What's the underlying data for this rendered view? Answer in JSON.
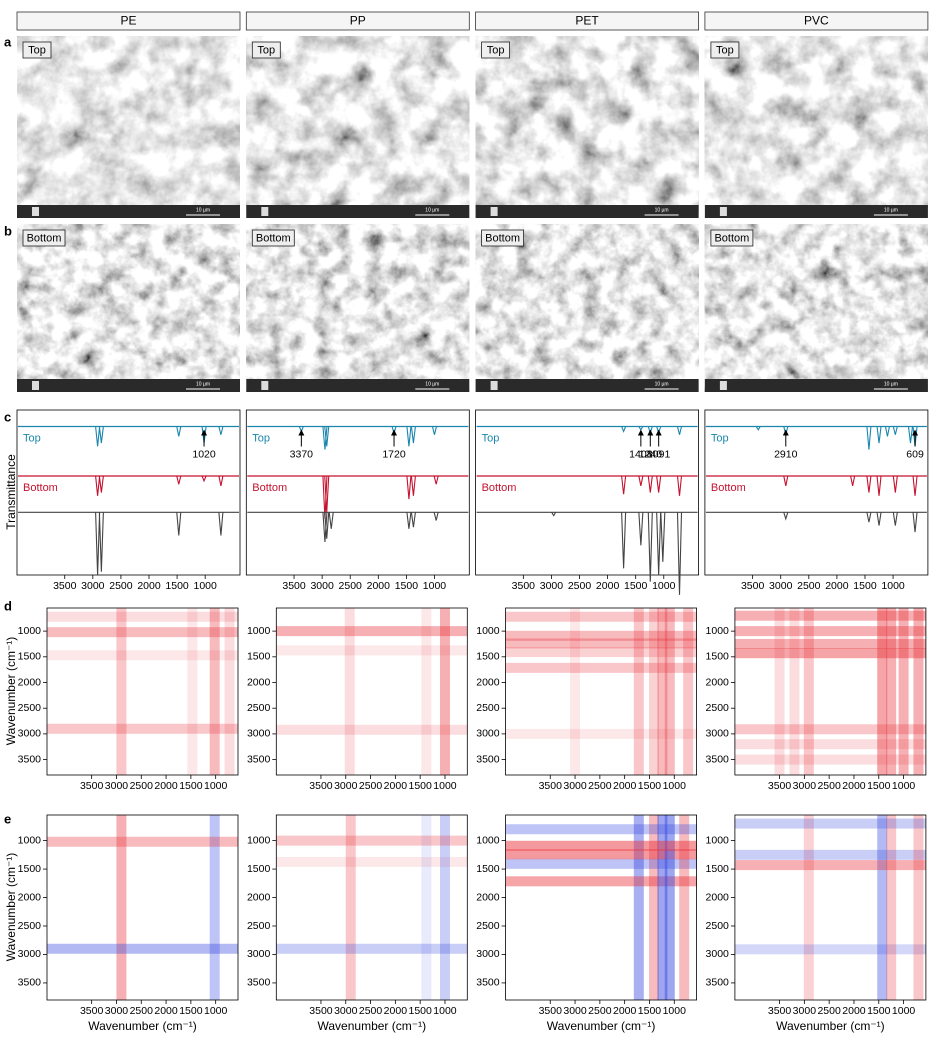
{
  "column_headers": [
    "PE",
    "PP",
    "PET",
    "PVC"
  ],
  "panel_letters": [
    "a",
    "b",
    "c",
    "d",
    "e"
  ],
  "sem": {
    "labels": [
      "Top",
      "Bottom"
    ],
    "scale_bar": "10 µm"
  },
  "spectra": {
    "type": "line",
    "ylabel": "Transmittance",
    "xlim": [
      4350,
      380
    ],
    "xticks": [
      3500,
      3000,
      2500,
      2000,
      1500,
      1000
    ],
    "panels": [
      {
        "annotations": [
          1020
        ],
        "series": [
          {
            "name": "Top",
            "color": "#1b86ad",
            "x": [
              2915,
              2848,
              1470,
              1020,
              720
            ],
            "values": [
              0.12,
              0.1,
              0.06,
              0.1,
              0.05
            ]
          },
          {
            "name": "Bottom",
            "color": "#c4122f",
            "x": [
              2915,
              2848,
              1470,
              1020,
              720
            ],
            "values": [
              0.12,
              0.1,
              0.05,
              0.03,
              0.06
            ]
          },
          {
            "color": "#444444",
            "x": [
              2915,
              2848,
              1470,
              720
            ],
            "values": [
              0.38,
              0.36,
              0.14,
              0.14
            ]
          }
        ]
      },
      {
        "annotations": [
          3370,
          1720
        ],
        "series": [
          {
            "name": "Top",
            "color": "#1b86ad",
            "x": [
              3370,
              2950,
              2918,
              1720,
              1455,
              1375,
              1000
            ],
            "values": [
              0.03,
              0.14,
              0.12,
              0.04,
              0.12,
              0.1,
              0.05
            ]
          },
          {
            "name": "Bottom",
            "color": "#c4122f",
            "x": [
              2950,
              2918,
              1455,
              1375,
              970
            ],
            "values": [
              0.26,
              0.22,
              0.14,
              0.12,
              0.05
            ]
          },
          {
            "color": "#444444",
            "x": [
              2950,
              2918,
              2838,
              1455,
              1375,
              970
            ],
            "values": [
              0.18,
              0.16,
              0.1,
              0.1,
              0.09,
              0.05
            ]
          }
        ]
      },
      {
        "annotations": [
          1408,
          1240,
          1091
        ],
        "series": [
          {
            "name": "Top",
            "color": "#1b86ad",
            "x": [
              1715,
              1408,
              1240,
              1091,
              720
            ],
            "values": [
              0.03,
              0.02,
              0.04,
              0.04,
              0.05
            ]
          },
          {
            "name": "Bottom",
            "color": "#c4122f",
            "x": [
              1715,
              1408,
              1240,
              1091,
              720
            ],
            "values": [
              0.11,
              0.06,
              0.1,
              0.1,
              0.12
            ]
          },
          {
            "color": "#444444",
            "x": [
              2960,
              1715,
              1408,
              1240,
              1091,
              1017,
              720
            ],
            "values": [
              0.02,
              0.34,
              0.2,
              0.42,
              0.38,
              0.3,
              0.5
            ]
          }
        ]
      },
      {
        "annotations": [
          2910,
          609
        ],
        "series": [
          {
            "name": "Top",
            "color": "#1b86ad",
            "x": [
              3400,
              2910,
              1430,
              1250,
              1100,
              960,
              690,
              609
            ],
            "values": [
              0.02,
              0.05,
              0.14,
              0.1,
              0.06,
              0.05,
              0.1,
              0.12
            ]
          },
          {
            "name": "Bottom",
            "color": "#c4122f",
            "x": [
              2910,
              1720,
              1430,
              1250,
              960,
              609
            ],
            "values": [
              0.06,
              0.06,
              0.1,
              0.12,
              0.1,
              0.12
            ]
          },
          {
            "color": "#444444",
            "x": [
              2910,
              1430,
              1250,
              960,
              609
            ],
            "values": [
              0.04,
              0.06,
              0.08,
              0.08,
              0.12
            ]
          }
        ]
      }
    ]
  },
  "maps": {
    "type": "heatmap",
    "xlabel": "Wavenumber (cm⁻¹)",
    "ylabel": "Wavenumber (cm⁻¹)",
    "xlim": [
      4400,
      550
    ],
    "ylim": [
      550,
      3800
    ],
    "xticks": [
      3500,
      3000,
      2500,
      2000,
      1500,
      1000
    ],
    "yticks": [
      1000,
      1500,
      2000,
      2500,
      3000,
      3500
    ],
    "positive_color": "#e8323a",
    "negative_color": "#3a4be0",
    "rows": [
      {
        "antisymmetric": false,
        "panels": [
          {
            "x": [
              2900,
              1020,
              1470,
              720
            ],
            "values": [
              0.5,
              0.6,
              0.2,
              0.3
            ]
          },
          {
            "x": [
              2920,
              1000,
              1375
            ],
            "values": [
              0.3,
              0.7,
              0.2
            ]
          },
          {
            "x": [
              3000,
              1715,
              1408,
              1240,
              1091,
              720
            ],
            "values": [
              0.2,
              0.5,
              0.4,
              0.6,
              0.6,
              0.5
            ]
          },
          {
            "x": [
              3500,
              3200,
              2910,
              1430,
              1250,
              1000,
              700
            ],
            "values": [
              0.3,
              0.3,
              0.5,
              0.8,
              0.7,
              0.7,
              0.7
            ]
          }
        ]
      },
      {
        "antisymmetric": true,
        "panels": [
          {
            "x": [
              2900,
              1020
            ],
            "values": [
              0.7,
              -0.6
            ]
          },
          {
            "x": [
              2900,
              1375,
              1000
            ],
            "values": [
              0.5,
              -0.2,
              -0.5
            ]
          },
          {
            "x": [
              1715,
              1408,
              1240,
              1091,
              800
            ],
            "values": [
              -0.8,
              0.6,
              -0.9,
              -0.9,
              0.6
            ]
          },
          {
            "x": [
              2910,
              1430,
              1250,
              700
            ],
            "values": [
              0.4,
              -0.7,
              0.5,
              0.5
            ]
          }
        ]
      }
    ]
  }
}
